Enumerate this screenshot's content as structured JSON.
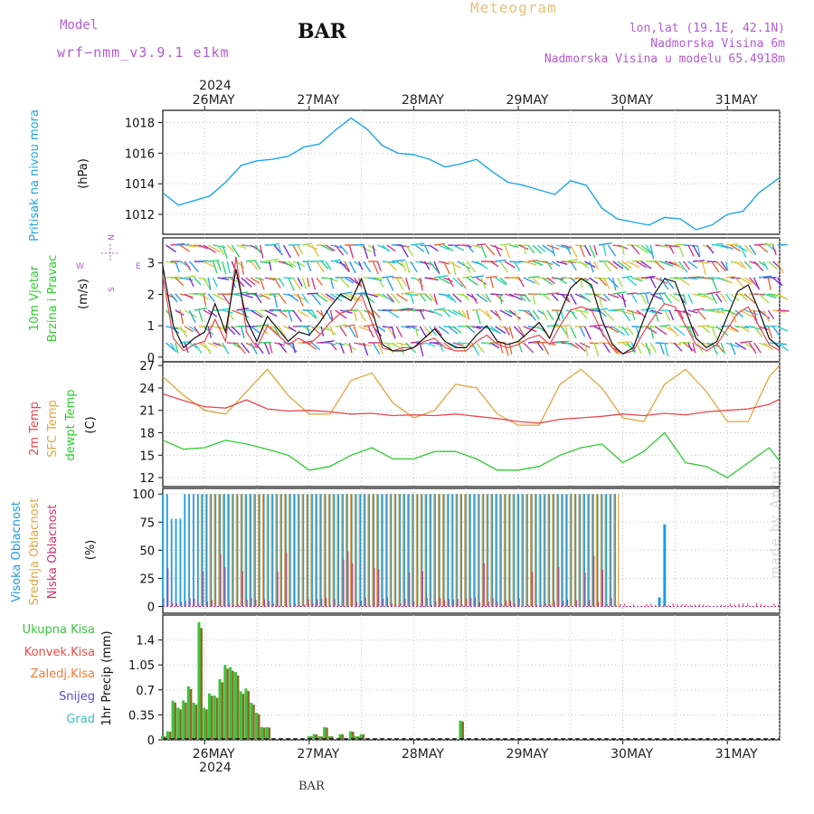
{
  "header": {
    "model_label": "Model",
    "model_name": "wrf−nmm_v3.9.1  e1km",
    "station": "BAR",
    "title": "Meteogram",
    "location": "lon,lat (19.1E, 42.1N)",
    "elevation": "Nadmorska Visina 6m",
    "model_elevation": "Nadmorska Visina u modelu 65.4918m"
  },
  "footer_station": "BAR",
  "watermark": "made by Angel",
  "time_axis": {
    "year": "2024",
    "days": [
      "26MAY",
      "27MAY",
      "28MAY",
      "29MAY",
      "30MAY",
      "31MAY"
    ]
  },
  "panels": {
    "pressure": {
      "ylabel_lines": [
        "Pritisak na nivou mora"
      ],
      "unit": "(hPa)",
      "color_label": "#1aa7e8"
    },
    "wind": {
      "ylabel_lines": [
        "10m Vjetar",
        "Brzina i Pravac"
      ],
      "unit": "(m/s)",
      "compass": {
        "n": "N",
        "s": "S",
        "w": "W",
        "e": "E"
      }
    },
    "temperature": {
      "ylabel_lines": [
        "2m Temp",
        "SFC Temp",
        "dewpt Temp"
      ],
      "unit": "(C)"
    },
    "clouds": {
      "ylabel_lines": [
        "Visoka Oblacnost",
        "Srednja Oblacnost",
        "Niska Oblacnost"
      ],
      "unit": "(%)"
    },
    "precip": {
      "legend": [
        "Ukupna Kisa",
        "Konvek.Kisa",
        "Zaledj.Kisa",
        "Snijeg",
        "Grad"
      ],
      "unit": "1hr Precip (mm)"
    }
  },
  "colors": {
    "pressure": "#1aa7e8",
    "t2m": "#e8474f",
    "sfc": "#e3a63d",
    "dewpt": "#2ecc2e",
    "high_cloud": "#1e9be6",
    "mid_cloud": "#e3a63d",
    "low_cloud": "#d0307a",
    "total_rain": "#39c639",
    "conv_rain": "#ef4848",
    "frz_rain": "#f07a3a",
    "snow": "#5a4ad6",
    "hail": "#3cc0c0",
    "wind_speed": "#111111",
    "wind_gust": "#e8474f",
    "magenta_label": "#b45ad2"
  },
  "chart_data": [
    {
      "type": "line",
      "title": "",
      "ylabel": "Pritisak na nivou mora (hPa)",
      "ylim": [
        1010.7,
        1018.8
      ],
      "yticks": [
        1012,
        1014,
        1016,
        1018
      ],
      "x_start_day": 25.6,
      "x_end_day": 31.5,
      "series": [
        {
          "name": "Pritisak na nivou mora",
          "x": [
            25.6,
            25.75,
            25.9,
            26.05,
            26.2,
            26.35,
            26.5,
            26.65,
            26.8,
            26.95,
            27.1,
            27.25,
            27.4,
            27.55,
            27.7,
            27.85,
            28.0,
            28.15,
            28.3,
            28.45,
            28.6,
            28.75,
            28.9,
            29.05,
            29.2,
            29.35,
            29.5,
            29.65,
            29.8,
            29.95,
            30.1,
            30.25,
            30.4,
            30.55,
            30.7,
            30.85,
            31.0,
            31.15,
            31.3,
            31.5
          ],
          "values": [
            1013.4,
            1012.6,
            1012.9,
            1013.2,
            1014.1,
            1015.2,
            1015.5,
            1015.6,
            1015.8,
            1016.4,
            1016.6,
            1017.5,
            1018.3,
            1017.6,
            1016.5,
            1016.0,
            1015.9,
            1015.6,
            1015.1,
            1015.3,
            1015.6,
            1014.8,
            1014.1,
            1013.9,
            1013.6,
            1013.3,
            1014.2,
            1013.9,
            1012.4,
            1011.7,
            1011.5,
            1011.3,
            1011.8,
            1011.7,
            1011.0,
            1011.3,
            1012.0,
            1012.2,
            1013.4,
            1014.4
          ]
        }
      ]
    },
    {
      "type": "line",
      "title": "",
      "ylabel": "10m Vjetar Brzina i Pravac (m/s)",
      "ylim": [
        -0.15,
        3.8
      ],
      "yticks": [
        0,
        1,
        2,
        3
      ],
      "series": [
        {
          "name": "speed",
          "x": [
            25.6,
            25.7,
            25.8,
            25.9,
            26.0,
            26.1,
            26.2,
            26.3,
            26.4,
            26.5,
            26.6,
            26.7,
            26.8,
            26.9,
            27.0,
            27.1,
            27.2,
            27.3,
            27.4,
            27.5,
            27.6,
            27.7,
            27.8,
            27.9,
            28.0,
            28.1,
            28.2,
            28.3,
            28.4,
            28.5,
            28.6,
            28.7,
            28.8,
            28.9,
            29.0,
            29.1,
            29.2,
            29.3,
            29.4,
            29.5,
            29.6,
            29.7,
            29.8,
            29.9,
            30.0,
            30.1,
            30.2,
            30.3,
            30.4,
            30.5,
            30.6,
            30.7,
            30.8,
            30.9,
            31.0,
            31.1,
            31.2,
            31.3,
            31.4,
            31.5
          ],
          "values": [
            2.9,
            1.0,
            0.3,
            0.6,
            0.8,
            1.7,
            0.8,
            2.8,
            1.2,
            0.5,
            1.3,
            0.9,
            0.5,
            0.8,
            0.7,
            1.1,
            1.6,
            2.0,
            1.8,
            2.5,
            1.5,
            0.4,
            0.2,
            0.2,
            0.3,
            0.6,
            0.9,
            0.5,
            0.3,
            0.3,
            0.7,
            1.0,
            0.5,
            0.4,
            0.5,
            0.8,
            1.1,
            0.6,
            1.4,
            2.2,
            2.5,
            2.3,
            1.2,
            0.4,
            0.1,
            0.3,
            1.2,
            2.0,
            2.5,
            2.4,
            1.5,
            0.6,
            0.3,
            0.5,
            1.3,
            2.1,
            2.3,
            1.5,
            0.6,
            0.3
          ]
        },
        {
          "name": "gust",
          "x": [
            25.6,
            25.7,
            25.8,
            25.9,
            26.0,
            26.1,
            26.2,
            26.3,
            26.4,
            26.5,
            26.6,
            26.7,
            26.8,
            26.9,
            27.0,
            27.1,
            27.2,
            27.3,
            27.4,
            27.5,
            27.6,
            27.7,
            27.8,
            27.9,
            28.0,
            28.1,
            28.2,
            28.3,
            28.4,
            28.5,
            28.6,
            28.7,
            28.8,
            28.9,
            29.0,
            29.1,
            29.2,
            29.3,
            29.4,
            29.5,
            29.6,
            29.7,
            29.8,
            29.9,
            30.0,
            30.1,
            30.2,
            30.3,
            30.4,
            30.5,
            30.6,
            30.7,
            30.8,
            30.9,
            31.0,
            31.1,
            31.2,
            31.3,
            31.4,
            31.5
          ],
          "values": [
            2.6,
            0.6,
            0.2,
            0.4,
            0.5,
            1.2,
            0.5,
            3.2,
            0.8,
            0.3,
            1.0,
            0.7,
            0.4,
            0.6,
            0.4,
            0.7,
            1.1,
            1.4,
            1.5,
            2.0,
            1.1,
            0.3,
            0.2,
            0.3,
            0.3,
            0.5,
            0.6,
            0.3,
            0.2,
            0.2,
            0.5,
            0.7,
            0.4,
            0.3,
            0.4,
            0.6,
            0.7,
            0.4,
            1.0,
            1.5,
            1.6,
            1.5,
            0.8,
            0.3,
            0.1,
            0.2,
            0.8,
            1.3,
            1.7,
            1.6,
            1.0,
            0.4,
            0.2,
            0.4,
            0.9,
            1.4,
            1.6,
            1.0,
            0.4,
            0.2
          ]
        }
      ]
    },
    {
      "type": "line",
      "title": "",
      "ylabel": "(C)",
      "ylim": [
        10.8,
        27.5
      ],
      "yticks": [
        12,
        15,
        18,
        21,
        24,
        27
      ],
      "series": [
        {
          "name": "2m Temp",
          "x": [
            25.6,
            25.8,
            26.0,
            26.2,
            26.4,
            26.6,
            26.8,
            27.0,
            27.2,
            27.4,
            27.6,
            27.8,
            28.0,
            28.2,
            28.4,
            28.6,
            28.8,
            29.0,
            29.2,
            29.4,
            29.6,
            29.8,
            30.0,
            30.2,
            30.4,
            30.6,
            30.8,
            31.0,
            31.2,
            31.4,
            31.5
          ],
          "values": [
            23.2,
            22.3,
            21.5,
            21.3,
            22.4,
            21.2,
            20.9,
            21.0,
            20.8,
            20.5,
            20.6,
            20.3,
            20.4,
            20.3,
            20.5,
            20.2,
            19.9,
            19.5,
            19.3,
            19.8,
            20.0,
            20.2,
            20.5,
            20.3,
            20.6,
            20.4,
            20.8,
            21.0,
            21.2,
            21.8,
            22.5
          ]
        },
        {
          "name": "SFC Temp",
          "x": [
            25.6,
            25.8,
            26.0,
            26.2,
            26.4,
            26.6,
            26.8,
            27.0,
            27.2,
            27.4,
            27.6,
            27.8,
            28.0,
            28.2,
            28.4,
            28.6,
            28.8,
            29.0,
            29.2,
            29.4,
            29.6,
            29.8,
            30.0,
            30.2,
            30.4,
            30.6,
            30.8,
            31.0,
            31.2,
            31.4,
            31.5
          ],
          "values": [
            25.5,
            23.0,
            21.0,
            20.5,
            23.5,
            26.5,
            23.0,
            20.5,
            20.5,
            25.0,
            26.0,
            22.0,
            20.0,
            21.0,
            24.5,
            24.0,
            20.5,
            19.0,
            19.0,
            24.5,
            26.5,
            24.0,
            20.0,
            19.5,
            24.5,
            26.5,
            23.5,
            19.5,
            19.5,
            25.5,
            27.0
          ]
        },
        {
          "name": "dewpt Temp",
          "x": [
            25.6,
            25.8,
            26.0,
            26.2,
            26.4,
            26.6,
            26.8,
            27.0,
            27.2,
            27.4,
            27.6,
            27.8,
            28.0,
            28.2,
            28.4,
            28.6,
            28.8,
            29.0,
            29.2,
            29.4,
            29.6,
            29.8,
            30.0,
            30.2,
            30.4,
            30.6,
            30.8,
            31.0,
            31.2,
            31.4,
            31.5
          ],
          "values": [
            17.0,
            15.8,
            16.0,
            17.0,
            16.5,
            15.8,
            15.0,
            13.0,
            13.5,
            15.0,
            16.0,
            14.5,
            14.5,
            15.5,
            15.5,
            14.5,
            13.0,
            13.0,
            13.5,
            15.0,
            16.0,
            16.5,
            14.0,
            15.5,
            18.0,
            14.0,
            13.5,
            12.0,
            14.0,
            16.0,
            14.2
          ]
        }
      ]
    },
    {
      "type": "bar",
      "title": "",
      "ylabel": "(%)",
      "ylim": [
        0,
        100
      ],
      "yticks": [
        0,
        25,
        50,
        75,
        100
      ],
      "series": [
        {
          "name": "Visoka Oblacnost",
          "x_start": 25.6,
          "x_end": 29.95,
          "values_note_shown": "mostly 100",
          "extra": [
            {
              "x": 30.4,
              "value": 73
            },
            {
              "x": 30.35,
              "value": 8
            }
          ]
        },
        {
          "name": "Srednja Oblacnost",
          "x_start": 25.95,
          "x_end": 29.95,
          "values_note_shown": "mostly 100"
        },
        {
          "name": "Niska Oblacnost",
          "x_start": 25.6,
          "x_end": 31.5,
          "values_note_shown": "mostly near 0"
        }
      ]
    },
    {
      "type": "bar",
      "title": "",
      "ylabel": "1hr Precip (mm)",
      "ylim": [
        0,
        1.75
      ],
      "yticks": [
        0,
        0.35,
        0.7,
        1.05,
        1.4
      ],
      "ytick_labels": [
        "0",
        "0.35",
        "0.7",
        "1.05",
        "1.4"
      ],
      "series": [
        {
          "name": "Ukupna Kisa",
          "x": [
            25.6,
            25.65,
            25.7,
            25.75,
            25.8,
            25.85,
            25.9,
            25.95,
            26.0,
            26.05,
            26.1,
            26.15,
            26.2,
            26.25,
            26.3,
            26.35,
            26.4,
            26.45,
            26.5,
            26.55,
            26.6,
            27.0,
            27.05,
            27.1,
            27.15,
            27.2,
            27.3,
            27.4,
            27.45,
            27.5,
            28.45
          ],
          "values": [
            0.05,
            0.12,
            0.55,
            0.45,
            0.55,
            0.75,
            0.52,
            1.65,
            0.45,
            0.65,
            0.62,
            0.85,
            1.05,
            1.02,
            0.95,
            0.68,
            0.72,
            0.52,
            0.38,
            0.18,
            0.18,
            0.05,
            0.08,
            0.05,
            0.18,
            0.05,
            0.08,
            0.12,
            0.05,
            0.08,
            0.27
          ]
        }
      ]
    }
  ]
}
